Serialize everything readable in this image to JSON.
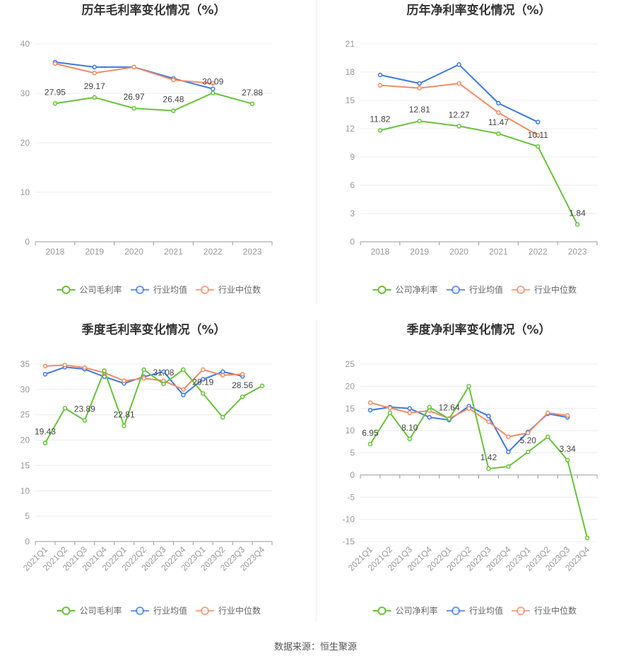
{
  "colors": {
    "company": "#67c23a",
    "avg": "#3b78e7",
    "median": "#f08c66"
  },
  "source": "数据来源：恒生聚源",
  "chart_data": [
    {
      "type": "line",
      "title": "历年毛利率变化情况（%）",
      "categories": [
        "2018",
        "2019",
        "2020",
        "2021",
        "2022",
        "2023"
      ],
      "ylim": [
        0,
        40
      ],
      "yticks": [
        0,
        10,
        20,
        30,
        40
      ],
      "rotate_x": false,
      "series": [
        {
          "name": "公司毛利率",
          "key": "company",
          "values": [
            27.95,
            29.17,
            26.97,
            26.48,
            30.09,
            27.88
          ],
          "labels": [
            "27.95",
            "29.17",
            "26.97",
            "26.48",
            "30.09",
            "27.88"
          ]
        },
        {
          "name": "行业均值",
          "key": "avg",
          "values": [
            36.3,
            35.3,
            35.3,
            33.0,
            30.9,
            null
          ]
        },
        {
          "name": "行业中位数",
          "key": "median",
          "values": [
            36.0,
            34.1,
            35.3,
            32.7,
            32.0,
            null
          ]
        }
      ]
    },
    {
      "type": "line",
      "title": "历年净利率变化情况（%）",
      "categories": [
        "2018",
        "2019",
        "2020",
        "2021",
        "2022",
        "2023"
      ],
      "ylim": [
        0,
        21
      ],
      "yticks": [
        0,
        3,
        6,
        9,
        12,
        15,
        18,
        21
      ],
      "rotate_x": false,
      "series": [
        {
          "name": "公司净利率",
          "key": "company",
          "values": [
            11.82,
            12.81,
            12.27,
            11.47,
            10.11,
            1.84
          ],
          "labels": [
            "11.82",
            "12.81",
            "12.27",
            "11.47",
            "10.11",
            "1.84"
          ]
        },
        {
          "name": "行业均值",
          "key": "avg",
          "values": [
            17.7,
            16.8,
            18.8,
            14.7,
            12.7,
            null
          ]
        },
        {
          "name": "行业中位数",
          "key": "median",
          "values": [
            16.6,
            16.3,
            16.8,
            13.7,
            11.3,
            null
          ]
        }
      ]
    },
    {
      "type": "line",
      "title": "季度毛利率变化情况（%）",
      "categories": [
        "2021Q1",
        "2021Q2",
        "2021Q3",
        "2021Q4",
        "2022Q1",
        "2022Q2",
        "2022Q3",
        "2022Q4",
        "2023Q1",
        "2023Q2",
        "2023Q3",
        "2023Q4"
      ],
      "ylim": [
        0,
        35
      ],
      "yticks": [
        0,
        5,
        10,
        15,
        20,
        25,
        30,
        35
      ],
      "rotate_x": true,
      "series": [
        {
          "name": "公司毛利率",
          "key": "company",
          "values": [
            19.43,
            26.3,
            23.89,
            33.7,
            22.81,
            33.9,
            31.08,
            33.9,
            29.19,
            24.5,
            28.56,
            30.7
          ],
          "labels": [
            "19.43",
            "",
            "23.89",
            "",
            "22.81",
            "",
            "31.08",
            "",
            "29.19",
            "",
            "28.56",
            ""
          ]
        },
        {
          "name": "行业均值",
          "key": "avg",
          "values": [
            33.0,
            34.4,
            34.0,
            32.5,
            31.2,
            32.5,
            33.5,
            28.9,
            32.0,
            33.5,
            32.6,
            null
          ]
        },
        {
          "name": "行业中位数",
          "key": "median",
          "values": [
            34.6,
            34.8,
            34.3,
            33.3,
            31.7,
            32.2,
            31.7,
            30.0,
            33.9,
            32.8,
            33.0,
            null
          ]
        }
      ]
    },
    {
      "type": "line",
      "title": "季度净利率变化情况（%）",
      "categories": [
        "2021Q1",
        "2021Q2",
        "2021Q3",
        "2021Q4",
        "2022Q1",
        "2022Q2",
        "2022Q3",
        "2022Q4",
        "2023Q1",
        "2023Q2",
        "2023Q3",
        "2023Q4"
      ],
      "ylim": [
        -15,
        25
      ],
      "yticks": [
        -15,
        -10,
        -5,
        0,
        5,
        10,
        15,
        20,
        25
      ],
      "rotate_x": true,
      "series": [
        {
          "name": "公司净利率",
          "key": "company",
          "values": [
            6.95,
            14.0,
            8.1,
            15.3,
            12.64,
            20.0,
            1.42,
            1.9,
            5.2,
            8.6,
            3.34,
            -14.2
          ],
          "labels": [
            "6.95",
            "",
            "8.10",
            "",
            "12.64",
            "",
            "1.42",
            "",
            "5.20",
            "",
            "3.34",
            ""
          ]
        },
        {
          "name": "行业均值",
          "key": "avg",
          "values": [
            14.6,
            15.3,
            15.0,
            13.0,
            12.4,
            15.5,
            13.3,
            5.2,
            9.7,
            13.8,
            13.0,
            null
          ]
        },
        {
          "name": "行业中位数",
          "key": "median",
          "values": [
            16.3,
            15.1,
            14.0,
            14.5,
            12.7,
            15.0,
            12.0,
            8.6,
            9.5,
            14.0,
            13.4,
            null
          ]
        }
      ]
    }
  ]
}
